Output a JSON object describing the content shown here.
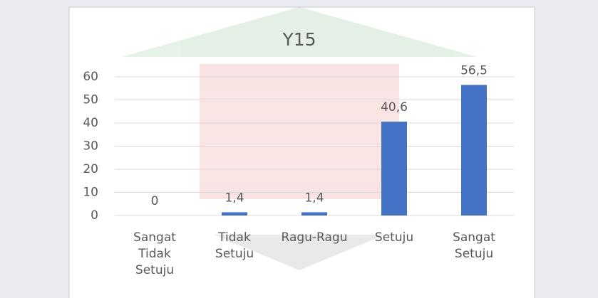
{
  "chart_data": {
    "type": "bar",
    "title": "Y15",
    "categories": [
      "Sangat\nTidak\nSetuju",
      "Tidak\nSetuju",
      "Ragu-Ragu",
      "Setuju",
      "Sangat\nSetuju"
    ],
    "values": [
      0,
      1.4,
      1.4,
      40.6,
      56.5
    ],
    "value_labels": [
      "0",
      "1,4",
      "1,4",
      "40,6",
      "56,5"
    ],
    "color": "#4472c4",
    "ylim": [
      0,
      60
    ],
    "yticks": [
      0,
      10,
      20,
      30,
      40,
      50,
      60
    ],
    "grid": true
  }
}
